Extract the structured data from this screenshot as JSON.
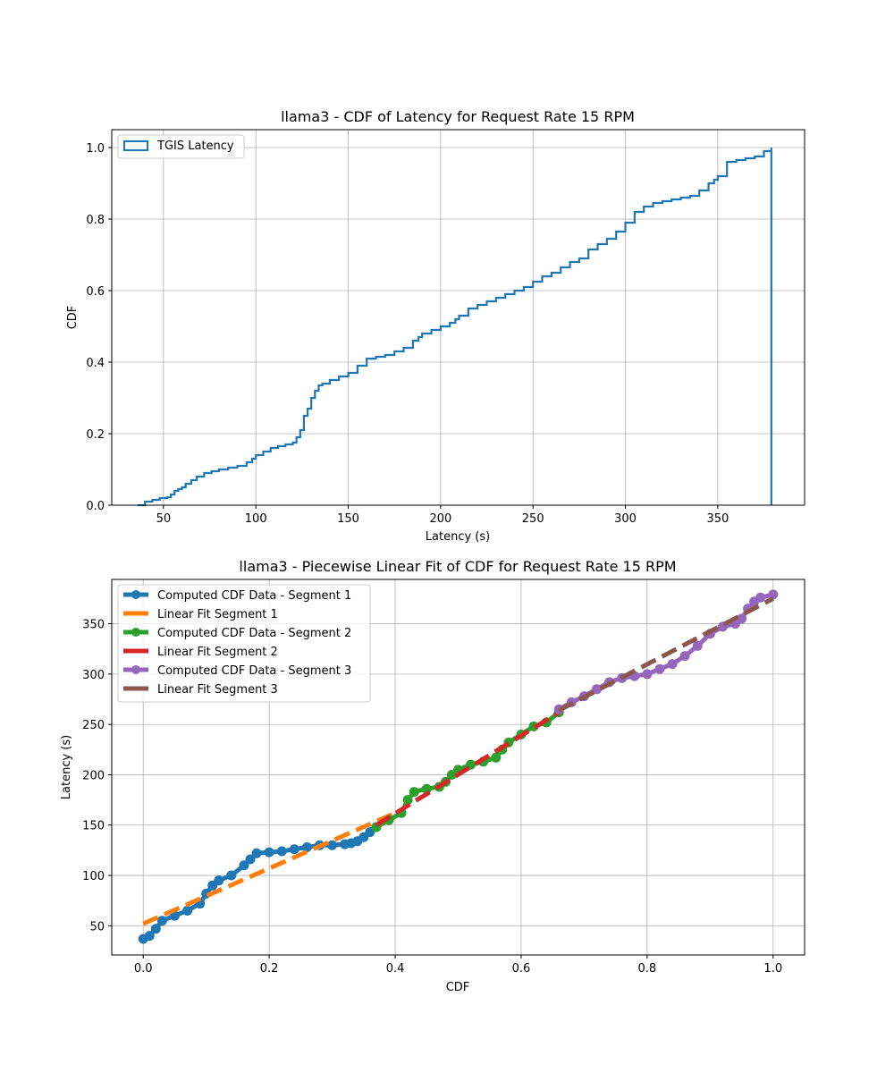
{
  "chart_data": [
    {
      "type": "line",
      "title": "llama3 - CDF of Latency for Request Rate 15 RPM",
      "xlabel": "Latency (s)",
      "ylabel": "CDF",
      "xlim": [
        22,
        397
      ],
      "ylim": [
        0,
        1.05
      ],
      "xticks": [
        50,
        100,
        150,
        200,
        250,
        300,
        350
      ],
      "yticks": [
        0.0,
        0.2,
        0.4,
        0.6,
        0.8,
        1.0
      ],
      "grid": true,
      "legend_position": "upper-left",
      "series": [
        {
          "name": "TGIS Latency",
          "color": "#1f77b4",
          "style": "step",
          "x": [
            36,
            40,
            44,
            48,
            52,
            54,
            56,
            58,
            60,
            62,
            65,
            68,
            72,
            76,
            80,
            85,
            90,
            95,
            98,
            100,
            104,
            108,
            112,
            116,
            120,
            122,
            124,
            126,
            128,
            130,
            132,
            134,
            136,
            140,
            145,
            150,
            155,
            160,
            165,
            170,
            175,
            180,
            185,
            188,
            190,
            195,
            200,
            205,
            208,
            210,
            215,
            220,
            225,
            230,
            235,
            240,
            245,
            250,
            255,
            260,
            265,
            270,
            275,
            280,
            285,
            290,
            295,
            300,
            305,
            310,
            315,
            320,
            325,
            330,
            335,
            340,
            345,
            348,
            350,
            355,
            360,
            365,
            370,
            375,
            379
          ],
          "y": [
            0.0,
            0.01,
            0.015,
            0.02,
            0.022,
            0.03,
            0.04,
            0.045,
            0.05,
            0.06,
            0.07,
            0.08,
            0.09,
            0.095,
            0.1,
            0.105,
            0.11,
            0.12,
            0.13,
            0.14,
            0.15,
            0.16,
            0.165,
            0.17,
            0.175,
            0.19,
            0.21,
            0.25,
            0.27,
            0.3,
            0.32,
            0.335,
            0.34,
            0.35,
            0.36,
            0.37,
            0.39,
            0.41,
            0.415,
            0.42,
            0.43,
            0.44,
            0.46,
            0.47,
            0.48,
            0.49,
            0.5,
            0.51,
            0.52,
            0.53,
            0.55,
            0.56,
            0.57,
            0.58,
            0.59,
            0.6,
            0.61,
            0.625,
            0.64,
            0.65,
            0.665,
            0.68,
            0.69,
            0.715,
            0.73,
            0.745,
            0.765,
            0.79,
            0.82,
            0.835,
            0.845,
            0.85,
            0.855,
            0.86,
            0.865,
            0.88,
            0.9,
            0.91,
            0.92,
            0.96,
            0.965,
            0.97,
            0.975,
            0.99,
            1.0
          ]
        }
      ]
    },
    {
      "type": "line",
      "title": "llama3 - Piecewise Linear Fit of CDF for Request Rate 15 RPM",
      "xlabel": "CDF",
      "ylabel": "Latency (s)",
      "xlim": [
        -0.05,
        1.05
      ],
      "ylim": [
        21,
        394
      ],
      "xticks": [
        0.0,
        0.2,
        0.4,
        0.6,
        0.8,
        1.0
      ],
      "yticks": [
        50,
        100,
        150,
        200,
        250,
        300,
        350
      ],
      "grid": true,
      "legend_position": "upper-left",
      "series": [
        {
          "name": "Computed CDF Data - Segment 1",
          "color": "#1f77b4",
          "style": "solid-markers",
          "x": [
            0.0,
            0.01,
            0.02,
            0.03,
            0.05,
            0.07,
            0.09,
            0.1,
            0.11,
            0.12,
            0.14,
            0.16,
            0.17,
            0.18,
            0.2,
            0.22,
            0.24,
            0.26,
            0.28,
            0.3,
            0.32,
            0.33,
            0.34,
            0.35,
            0.36,
            0.37
          ],
          "y": [
            37,
            40,
            47,
            55,
            60,
            65,
            72,
            82,
            90,
            95,
            100,
            110,
            116,
            122,
            123,
            124,
            126,
            128,
            130,
            130,
            131,
            132,
            134,
            138,
            143,
            148
          ]
        },
        {
          "name": "Linear Fit Segment 1",
          "color": "#ff7f0e",
          "style": "dashed",
          "x": [
            0.0,
            0.4
          ],
          "y": [
            52,
            162
          ]
        },
        {
          "name": "Computed CDF Data - Segment 2",
          "color": "#2ca02c",
          "style": "solid-markers",
          "x": [
            0.37,
            0.39,
            0.41,
            0.42,
            0.43,
            0.45,
            0.47,
            0.48,
            0.49,
            0.5,
            0.52,
            0.54,
            0.56,
            0.57,
            0.58,
            0.6,
            0.62,
            0.64,
            0.66
          ],
          "y": [
            148,
            155,
            162,
            175,
            183,
            186,
            188,
            193,
            200,
            205,
            210,
            213,
            217,
            225,
            232,
            240,
            248,
            252,
            262
          ]
        },
        {
          "name": "Linear Fit Segment 2",
          "color": "#d62728",
          "style": "dashed",
          "x": [
            0.37,
            0.66
          ],
          "y": [
            150,
            262
          ]
        },
        {
          "name": "Computed CDF Data - Segment 3",
          "color": "#9467bd",
          "style": "solid-markers",
          "x": [
            0.66,
            0.68,
            0.7,
            0.72,
            0.74,
            0.76,
            0.78,
            0.8,
            0.82,
            0.84,
            0.86,
            0.88,
            0.9,
            0.92,
            0.94,
            0.95,
            0.96,
            0.97,
            0.98,
            1.0
          ],
          "y": [
            265,
            272,
            278,
            285,
            292,
            296,
            298,
            300,
            305,
            310,
            318,
            328,
            340,
            347,
            350,
            355,
            365,
            372,
            376,
            379
          ]
        },
        {
          "name": "Linear Fit Segment 3",
          "color": "#8c564b",
          "style": "dashed",
          "x": [
            0.66,
            1.0
          ],
          "y": [
            264,
            375
          ]
        }
      ]
    }
  ]
}
